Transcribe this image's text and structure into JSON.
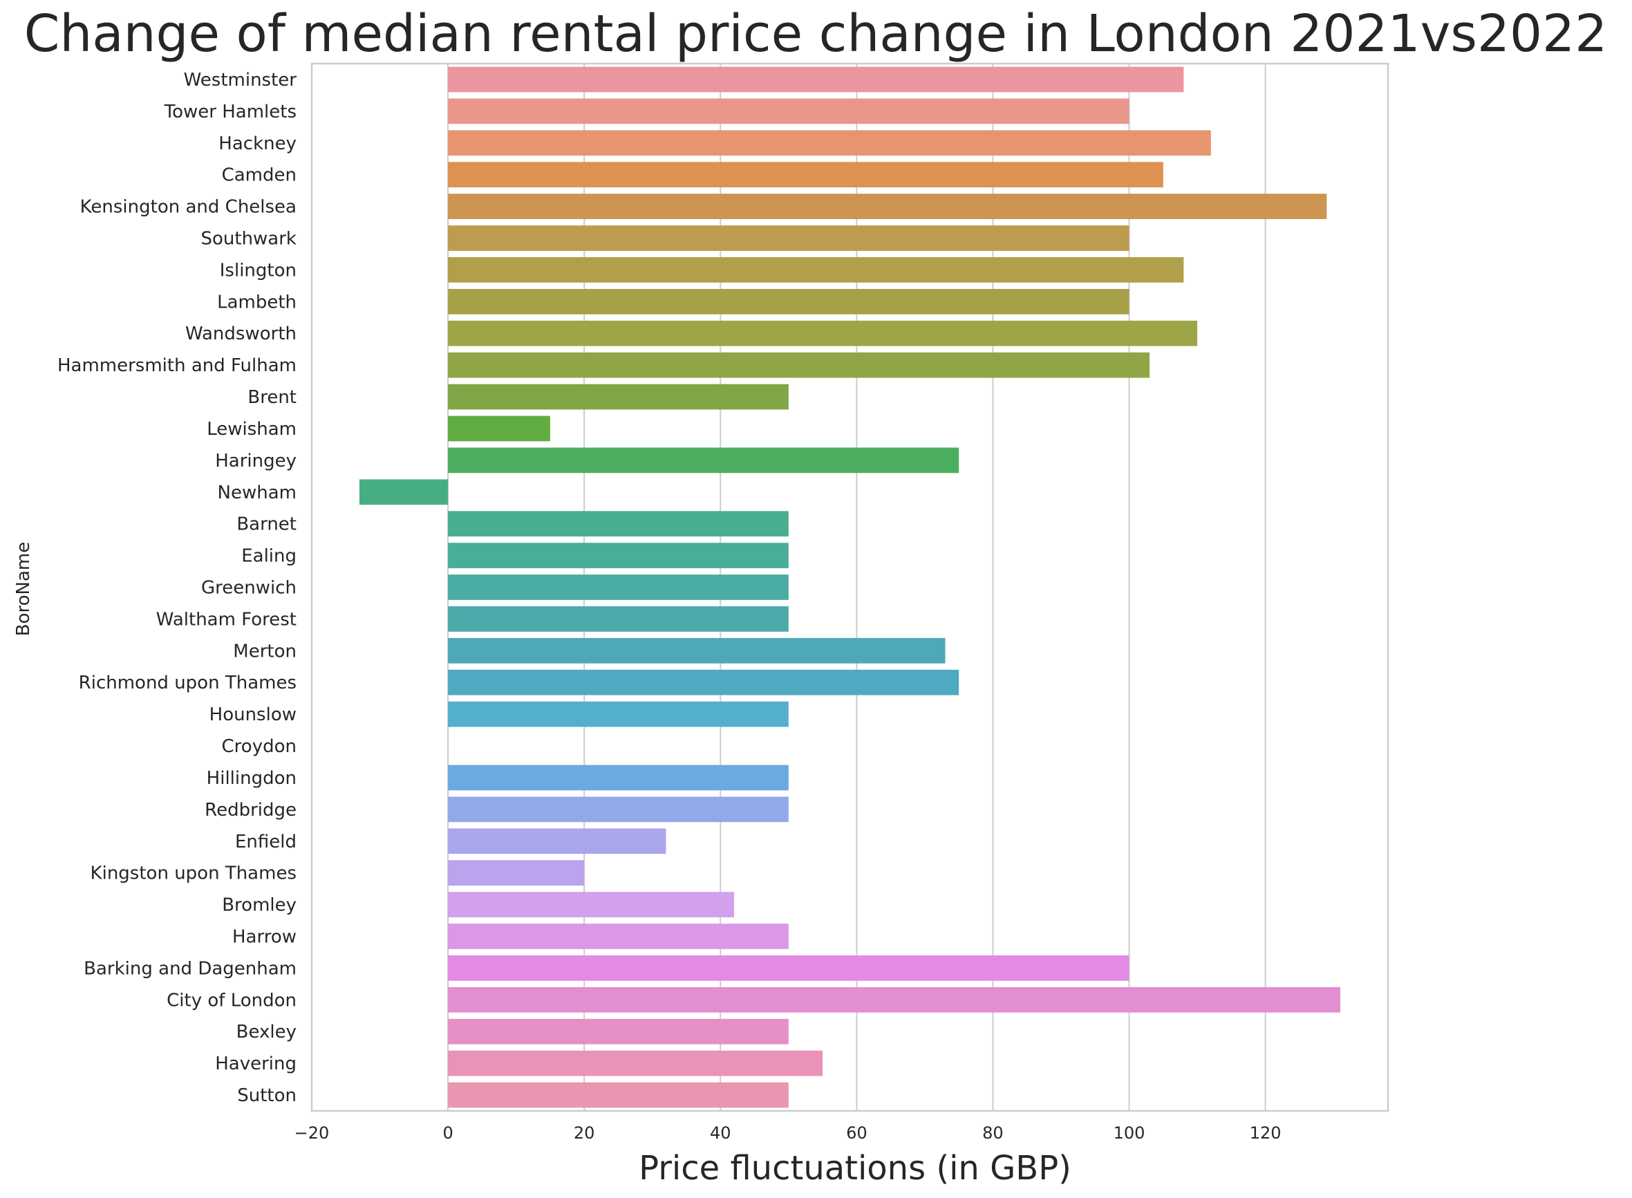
{
  "chart_data": {
    "type": "bar",
    "orientation": "horizontal",
    "title": "Change of median rental price change in London 2021vs2022",
    "xlabel": "Price fluctuations (in GBP)",
    "ylabel": "BoroName",
    "xlim": [
      -20,
      138
    ],
    "xticks": [
      -20,
      0,
      20,
      40,
      60,
      80,
      100,
      120
    ],
    "grid": "vertical",
    "categories": [
      "Westminster",
      "Tower Hamlets",
      "Hackney",
      "Camden",
      "Kensington and Chelsea",
      "Southwark",
      "Islington",
      "Lambeth",
      "Wandsworth",
      "Hammersmith and Fulham",
      "Brent",
      "Lewisham",
      "Haringey",
      "Newham",
      "Barnet",
      "Ealing",
      "Greenwich",
      "Waltham Forest",
      "Merton",
      "Richmond upon Thames",
      "Hounslow",
      "Croydon",
      "Hillingdon",
      "Redbridge",
      "Enfield",
      "Kingston upon Thames",
      "Bromley",
      "Harrow",
      "Barking and Dagenham",
      "City of London",
      "Bexley",
      "Havering",
      "Sutton"
    ],
    "values": [
      108,
      100,
      112,
      105,
      129,
      100,
      108,
      100,
      110,
      103,
      50,
      15,
      75,
      -13,
      50,
      50,
      50,
      50,
      73,
      75,
      50,
      0,
      50,
      50,
      32,
      20,
      42,
      50,
      100,
      131,
      50,
      55,
      50
    ],
    "colors": [
      "#ea959f",
      "#e9968c",
      "#e8946f",
      "#de924f",
      "#cd9551",
      "#bd9b4f",
      "#b09f4b",
      "#a6a048",
      "#9da547",
      "#90a646",
      "#80a646",
      "#61ad41",
      "#4caf5f",
      "#47ae84",
      "#49ae91",
      "#4aad9a",
      "#4baca3",
      "#4daaaa",
      "#4ea8b7",
      "#4fa9c1",
      "#53afcc",
      "#5bb0d8",
      "#6aaae1",
      "#91a9e8",
      "#aaa6eb",
      "#bca3ee",
      "#d2a0ed",
      "#da98e7",
      "#e48ae4",
      "#e38ed3",
      "#e68fc5",
      "#ea92b7",
      "#eb96b0"
    ]
  }
}
